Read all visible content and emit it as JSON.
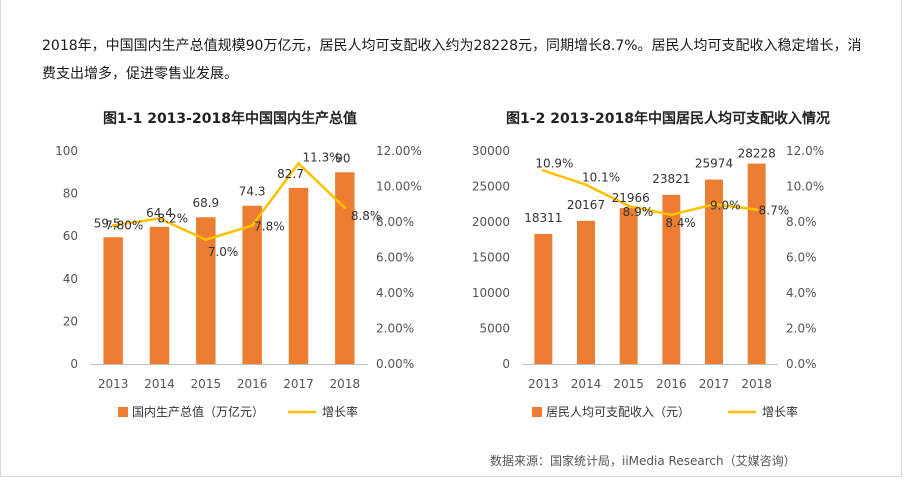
{
  "intro_text": "2018年，中国国内生产总值规模90万亿元，居民人均可支配收入约为28228元，同期增长8.7%。居民人均可支配收入稳定增长，消费支出增多，促进零售业发展。",
  "source_text": "数据来源：国家统计局，iiMedia Research（艾媒咨询）",
  "colors": {
    "bar": "#ED7D31",
    "line": "#FFC000",
    "axis": "#bfbfbf"
  },
  "chart_data": [
    {
      "type": "bar",
      "title": "图1-1 2013-2018年中国国内生产总值",
      "categories": [
        "2013",
        "2014",
        "2015",
        "2016",
        "2017",
        "2018"
      ],
      "series": [
        {
          "name": "国内生产总值（万亿元）",
          "type": "bar",
          "axis": "left",
          "values": [
            59.5,
            64.4,
            68.9,
            74.3,
            82.7,
            90
          ],
          "labels": [
            "59.5",
            "64.4",
            "68.9",
            "74.3",
            "82.7",
            "90"
          ]
        },
        {
          "name": "增长率",
          "type": "line",
          "axis": "right",
          "values": [
            7.8,
            8.2,
            7.0,
            7.8,
            11.3,
            8.8
          ],
          "labels": [
            "7.80%",
            "8.2%",
            "7.0%",
            "7.8%",
            "11.3%",
            "8.8%"
          ]
        }
      ],
      "ylim": [
        0,
        100
      ],
      "yticks": [
        "0",
        "20",
        "40",
        "60",
        "80",
        "100"
      ],
      "ylim_right": [
        0,
        12
      ],
      "yticks_right": [
        "0.00%",
        "2.00%",
        "4.00%",
        "6.00%",
        "8.00%",
        "10.00%",
        "12.00%"
      ],
      "legend": "bottom"
    },
    {
      "type": "bar",
      "title": "图1-2 2013-2018年中国居民人均可支配收入情况",
      "categories": [
        "2013",
        "2014",
        "2015",
        "2016",
        "2017",
        "2018"
      ],
      "series": [
        {
          "name": "居民人均可支配收入（元）",
          "type": "bar",
          "axis": "left",
          "values": [
            18311,
            20167,
            21966,
            23821,
            25974,
            28228
          ],
          "labels": [
            "18311",
            "20167",
            "21966",
            "23821",
            "25974",
            "28228"
          ]
        },
        {
          "name": "增长率",
          "type": "line",
          "axis": "right",
          "values": [
            10.9,
            10.1,
            8.9,
            8.4,
            9.0,
            8.7
          ],
          "labels": [
            "10.9%",
            "10.1%",
            "8.9%",
            "8.4%",
            "9.0%",
            "8.7%"
          ]
        }
      ],
      "ylim": [
        0,
        30000
      ],
      "yticks": [
        "0",
        "5000",
        "10000",
        "15000",
        "20000",
        "25000",
        "30000"
      ],
      "ylim_right": [
        0,
        12
      ],
      "yticks_right": [
        "0.0%",
        "2.0%",
        "4.0%",
        "6.0%",
        "8.0%",
        "10.0%",
        "12.0%"
      ],
      "legend": "bottom"
    }
  ]
}
